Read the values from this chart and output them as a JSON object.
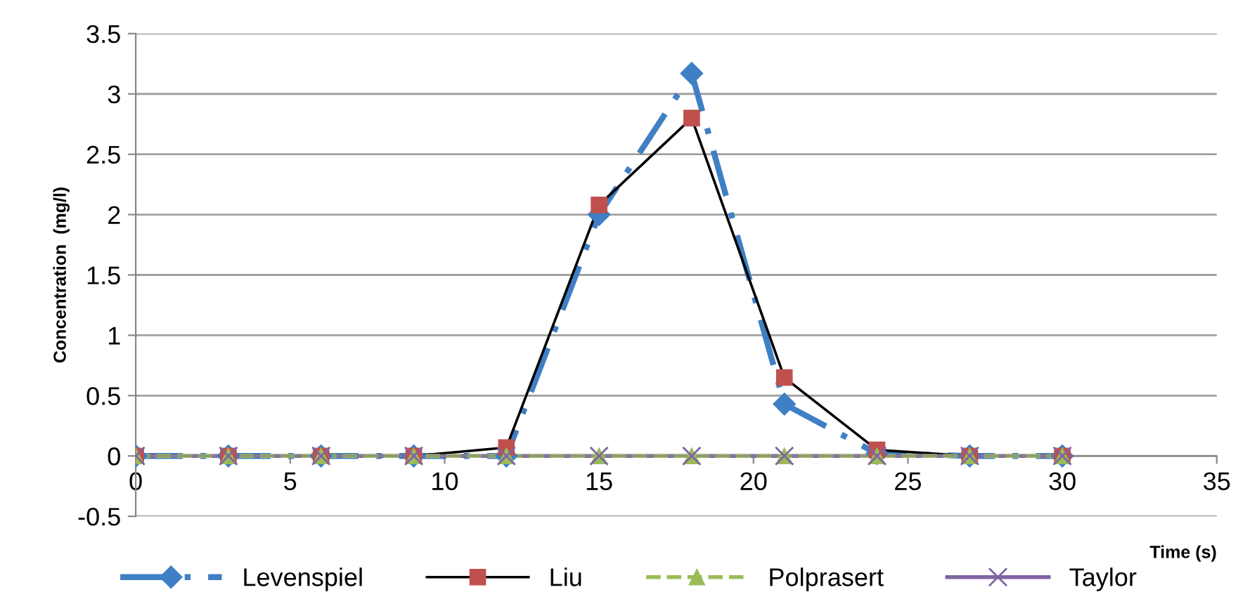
{
  "chart_data": {
    "type": "line",
    "xlabel": "Time (s)",
    "ylabel": "Concentration  (mg/l)",
    "x": [
      0,
      3,
      6,
      9,
      12,
      15,
      18,
      21,
      24,
      27,
      30
    ],
    "series": [
      {
        "name": "Levenspiel",
        "color": "#3f7fc4",
        "marker": "diamond",
        "line_style": "dashed",
        "values": [
          0,
          0,
          0,
          0,
          0,
          2.0,
          3.17,
          0.43,
          0.02,
          0,
          0
        ]
      },
      {
        "name": "Liu",
        "color": "#c0504d",
        "marker": "square",
        "line_style": "solid",
        "values": [
          0,
          0,
          0,
          0,
          0.07,
          2.08,
          2.8,
          0.65,
          0.05,
          0,
          0
        ]
      },
      {
        "name": "Polprasert",
        "color": "#9bbb59",
        "marker": "triangle",
        "line_style": "dashed",
        "values": [
          0,
          0,
          0,
          0,
          0,
          0,
          0,
          0,
          0,
          0,
          0
        ]
      },
      {
        "name": "Taylor",
        "color": "#8064a2",
        "marker": "cross",
        "line_style": "solid",
        "values": [
          0,
          0,
          0,
          0,
          0,
          0,
          0,
          0,
          0,
          0,
          0
        ]
      }
    ],
    "xlim": [
      0,
      35
    ],
    "xticks": [
      0,
      5,
      10,
      15,
      20,
      25,
      30,
      35
    ],
    "ylim": [
      -0.5,
      3.5
    ],
    "yticks": [
      -0.5,
      0,
      0.5,
      1,
      1.5,
      2,
      2.5,
      3,
      3.5
    ],
    "grid": "y",
    "legend": "bottom"
  }
}
